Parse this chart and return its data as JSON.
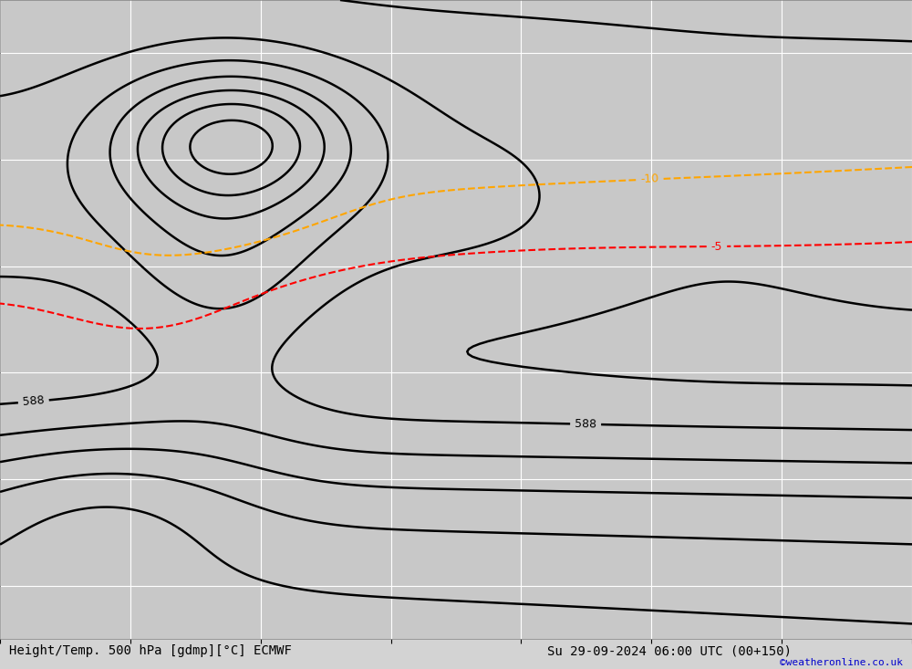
{
  "title_left": "Height/Temp. 500 hPa [gdmp][°C] ECMWF",
  "title_right": "Su 29-09-2024 06:00 UTC (00+150)",
  "copyright": "©weatheronline.co.uk",
  "background_color": "#d3d3d3",
  "land_color": "#90ee90",
  "ocean_color": "#c8c8c8",
  "coast_color": "#808080",
  "border_color": "#808080",
  "grid_color": "#ffffff",
  "contour_color_height": "#000000",
  "contour_color_temp_cold": "#ff0000",
  "contour_color_temp_warm": "#ffa500",
  "font_size_labels": 9,
  "font_size_bottom": 10,
  "font_size_copyright": 8,
  "lon_min": -80,
  "lon_max": -10,
  "lat_min": 5,
  "lat_max": 65,
  "grid_lons": [
    -80,
    -70,
    -60,
    -50,
    -40,
    -30,
    -20,
    -10
  ],
  "grid_lats": [
    10,
    20,
    30,
    40,
    50,
    60
  ],
  "tick_lons": [
    -80,
    -70,
    -60,
    -50,
    -40,
    -30,
    -20,
    -10
  ],
  "tick_lats": [
    10,
    20,
    30,
    40,
    50,
    60
  ]
}
